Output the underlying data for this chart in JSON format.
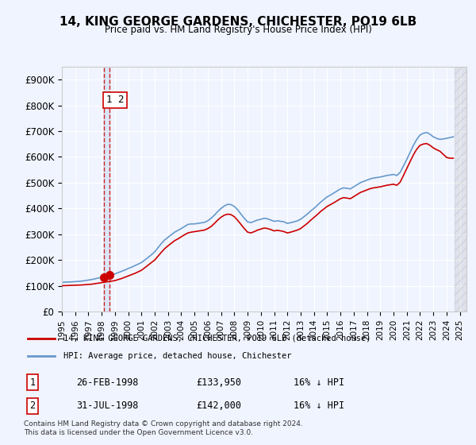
{
  "title": "14, KING GEORGE GARDENS, CHICHESTER, PO19 6LB",
  "subtitle": "Price paid vs. HM Land Registry's House Price Index (HPI)",
  "background_color": "#f0f4ff",
  "plot_bg_color": "#f0f4ff",
  "ylim": [
    0,
    950000
  ],
  "yticks": [
    0,
    100000,
    200000,
    300000,
    400000,
    500000,
    600000,
    700000,
    800000,
    900000
  ],
  "ytick_labels": [
    "£0",
    "£100K",
    "£200K",
    "£300K",
    "£400K",
    "£500K",
    "£600K",
    "£700K",
    "£800K",
    "£900K"
  ],
  "xlim_start": 1995.0,
  "xlim_end": 2025.5,
  "hpi_color": "#6699cc",
  "price_color": "#cc0000",
  "marker_color": "#cc0000",
  "vline_color": "#cc0000",
  "sale1_x": 1998.14,
  "sale1_y": 133950,
  "sale2_x": 1998.58,
  "sale2_y": 142000,
  "sale1_label": "1",
  "sale2_label": "2",
  "legend_label_red": "14, KING GEORGE GARDENS, CHICHESTER, PO19 6LB (detached house)",
  "legend_label_blue": "HPI: Average price, detached house, Chichester",
  "table_rows": [
    [
      "1",
      "26-FEB-1998",
      "£133,950",
      "16% ↓ HPI"
    ],
    [
      "2",
      "31-JUL-1998",
      "£142,000",
      "16% ↓ HPI"
    ]
  ],
  "footnote": "Contains HM Land Registry data © Crown copyright and database right 2024.\nThis data is licensed under the Open Government Licence v3.0.",
  "hpi_x": [
    1995.0,
    1995.25,
    1995.5,
    1995.75,
    1996.0,
    1996.25,
    1996.5,
    1996.75,
    1997.0,
    1997.25,
    1997.5,
    1997.75,
    1998.0,
    1998.25,
    1998.5,
    1998.75,
    1999.0,
    1999.25,
    1999.5,
    1999.75,
    2000.0,
    2000.25,
    2000.5,
    2000.75,
    2001.0,
    2001.25,
    2001.5,
    2001.75,
    2002.0,
    2002.25,
    2002.5,
    2002.75,
    2003.0,
    2003.25,
    2003.5,
    2003.75,
    2004.0,
    2004.25,
    2004.5,
    2004.75,
    2005.0,
    2005.25,
    2005.5,
    2005.75,
    2006.0,
    2006.25,
    2006.5,
    2006.75,
    2007.0,
    2007.25,
    2007.5,
    2007.75,
    2008.0,
    2008.25,
    2008.5,
    2008.75,
    2009.0,
    2009.25,
    2009.5,
    2009.75,
    2010.0,
    2010.25,
    2010.5,
    2010.75,
    2011.0,
    2011.25,
    2011.5,
    2011.75,
    2012.0,
    2012.25,
    2012.5,
    2012.75,
    2013.0,
    2013.25,
    2013.5,
    2013.75,
    2014.0,
    2014.25,
    2014.5,
    2014.75,
    2015.0,
    2015.25,
    2015.5,
    2015.75,
    2016.0,
    2016.25,
    2016.5,
    2016.75,
    2017.0,
    2017.25,
    2017.5,
    2017.75,
    2018.0,
    2018.25,
    2018.5,
    2018.75,
    2019.0,
    2019.25,
    2019.5,
    2019.75,
    2020.0,
    2020.25,
    2020.5,
    2020.75,
    2021.0,
    2021.25,
    2021.5,
    2021.75,
    2022.0,
    2022.25,
    2022.5,
    2022.75,
    2023.0,
    2023.25,
    2023.5,
    2023.75,
    2024.0,
    2024.25,
    2024.5
  ],
  "hpi_y": [
    113000,
    114000,
    114500,
    115000,
    116000,
    117000,
    118000,
    120000,
    122000,
    124000,
    127000,
    130000,
    133000,
    136000,
    139000,
    142000,
    146000,
    151000,
    156000,
    161000,
    167000,
    172000,
    178000,
    184000,
    190000,
    200000,
    210000,
    220000,
    232000,
    248000,
    264000,
    278000,
    288000,
    298000,
    308000,
    315000,
    322000,
    330000,
    338000,
    340000,
    340000,
    342000,
    344000,
    346000,
    352000,
    362000,
    374000,
    388000,
    400000,
    410000,
    416000,
    415000,
    408000,
    395000,
    378000,
    362000,
    348000,
    345000,
    350000,
    355000,
    358000,
    362000,
    360000,
    355000,
    350000,
    352000,
    350000,
    348000,
    342000,
    345000,
    348000,
    352000,
    358000,
    368000,
    378000,
    390000,
    400000,
    412000,
    424000,
    435000,
    445000,
    452000,
    460000,
    468000,
    476000,
    480000,
    478000,
    476000,
    484000,
    492000,
    500000,
    505000,
    510000,
    515000,
    518000,
    520000,
    522000,
    525000,
    528000,
    530000,
    532000,
    528000,
    540000,
    565000,
    590000,
    618000,
    645000,
    668000,
    685000,
    692000,
    695000,
    688000,
    678000,
    672000,
    668000,
    670000,
    672000,
    675000,
    678000
  ],
  "price_x": [
    1995.0,
    1995.25,
    1995.5,
    1995.75,
    1996.0,
    1996.25,
    1996.5,
    1996.75,
    1997.0,
    1997.25,
    1997.5,
    1997.75,
    1998.0,
    1998.25,
    1998.5,
    1998.75,
    1999.0,
    1999.25,
    1999.5,
    1999.75,
    2000.0,
    2000.25,
    2000.5,
    2000.75,
    2001.0,
    2001.25,
    2001.5,
    2001.75,
    2002.0,
    2002.25,
    2002.5,
    2002.75,
    2003.0,
    2003.25,
    2003.5,
    2003.75,
    2004.0,
    2004.25,
    2004.5,
    2004.75,
    2005.0,
    2005.25,
    2005.5,
    2005.75,
    2006.0,
    2006.25,
    2006.5,
    2006.75,
    2007.0,
    2007.25,
    2007.5,
    2007.75,
    2008.0,
    2008.25,
    2008.5,
    2008.75,
    2009.0,
    2009.25,
    2009.5,
    2009.75,
    2010.0,
    2010.25,
    2010.5,
    2010.75,
    2011.0,
    2011.25,
    2011.5,
    2011.75,
    2012.0,
    2012.25,
    2012.5,
    2012.75,
    2013.0,
    2013.25,
    2013.5,
    2013.75,
    2014.0,
    2014.25,
    2014.5,
    2014.75,
    2015.0,
    2015.25,
    2015.5,
    2015.75,
    2016.0,
    2016.25,
    2016.5,
    2016.75,
    2017.0,
    2017.25,
    2017.5,
    2017.75,
    2018.0,
    2018.25,
    2018.5,
    2018.75,
    2019.0,
    2019.25,
    2019.5,
    2019.75,
    2020.0,
    2020.25,
    2020.5,
    2020.75,
    2021.0,
    2021.25,
    2021.5,
    2021.75,
    2022.0,
    2022.25,
    2022.5,
    2022.75,
    2023.0,
    2023.25,
    2023.5,
    2023.75,
    2024.0,
    2024.25,
    2024.5
  ],
  "price_y": [
    100000,
    100500,
    101000,
    101500,
    102000,
    102500,
    103000,
    104000,
    105000,
    106000,
    108000,
    110000,
    112000,
    114000,
    116000,
    118000,
    120000,
    124000,
    128000,
    133000,
    138000,
    143000,
    148000,
    154000,
    160000,
    170000,
    180000,
    190000,
    200000,
    215000,
    230000,
    244000,
    255000,
    265000,
    275000,
    282000,
    290000,
    298000,
    305000,
    308000,
    310000,
    312000,
    314000,
    316000,
    322000,
    330000,
    342000,
    355000,
    366000,
    374000,
    378000,
    376000,
    368000,
    354000,
    338000,
    322000,
    308000,
    305000,
    310000,
    316000,
    320000,
    324000,
    322000,
    318000,
    313000,
    315000,
    313000,
    310000,
    305000,
    308000,
    312000,
    316000,
    322000,
    332000,
    342000,
    354000,
    365000,
    376000,
    388000,
    398000,
    408000,
    415000,
    422000,
    430000,
    438000,
    442000,
    440000,
    438000,
    446000,
    454000,
    462000,
    467000,
    472000,
    477000,
    480000,
    482000,
    484000,
    487000,
    490000,
    492000,
    494000,
    490000,
    502000,
    528000,
    555000,
    582000,
    608000,
    630000,
    645000,
    650000,
    652000,
    645000,
    635000,
    628000,
    622000,
    610000,
    598000,
    595000,
    595000
  ]
}
